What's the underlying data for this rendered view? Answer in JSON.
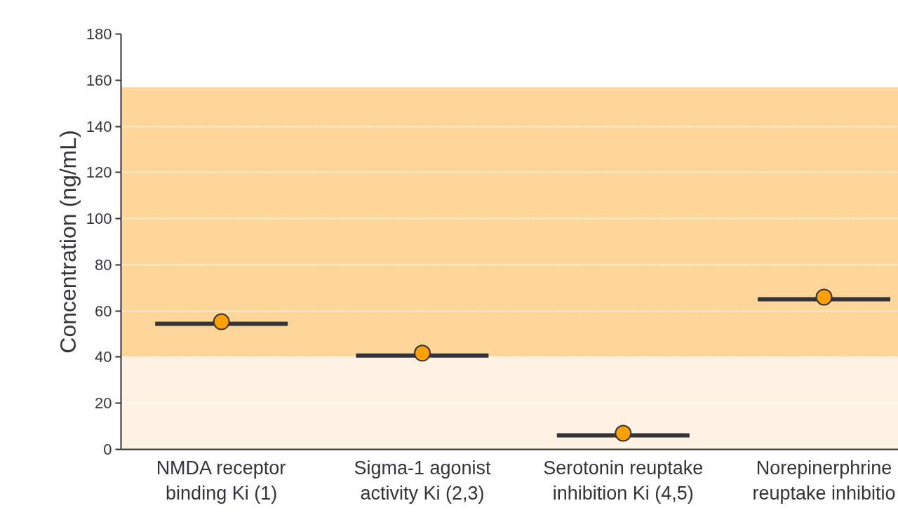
{
  "chart_data": {
    "type": "scatter",
    "ylabel": "Concentration (ng/mL)",
    "categories": [
      "NMDA receptor\nbinding Ki (1)",
      "Sigma-1 agonist\nactivity Ki (2,3)",
      "Serotonin reuptake\ninhibition Ki (4,5)",
      "Norepinerphrine\nreuptake inhibitio"
    ],
    "series": [
      {
        "type": "box",
        "color": "#333339",
        "boxes": [
          {
            "low": 54.4,
            "q1": 54.4,
            "median": 54.4,
            "q3": 54.4,
            "high": 54.4
          },
          {
            "low": 40.7,
            "q1": 40.7,
            "median": 40.7,
            "q3": 40.7,
            "high": 40.7
          },
          {
            "low": 6.1,
            "q1": 6.1,
            "median": 6.1,
            "q3": 6.1,
            "high": 6.1
          },
          {
            "low": 65.1,
            "q1": 65.1,
            "median": 65.1,
            "q3": 65.1,
            "high": 65.1
          }
        ]
      },
      {
        "marker": "circle",
        "color": "#ff9f00",
        "values": [
          55.3,
          41.7,
          7.0,
          66.0
        ]
      }
    ],
    "bands": [
      {
        "axis": "y",
        "from": 0,
        "to": 40,
        "color": "#fef2e4"
      },
      {
        "axis": "y",
        "from": 40,
        "to": 157,
        "color": "#fed699"
      }
    ],
    "ylim": [
      0,
      180
    ],
    "yticks": [
      0,
      20,
      40,
      60,
      80,
      100,
      120,
      140,
      160,
      180
    ],
    "grid": "y"
  }
}
